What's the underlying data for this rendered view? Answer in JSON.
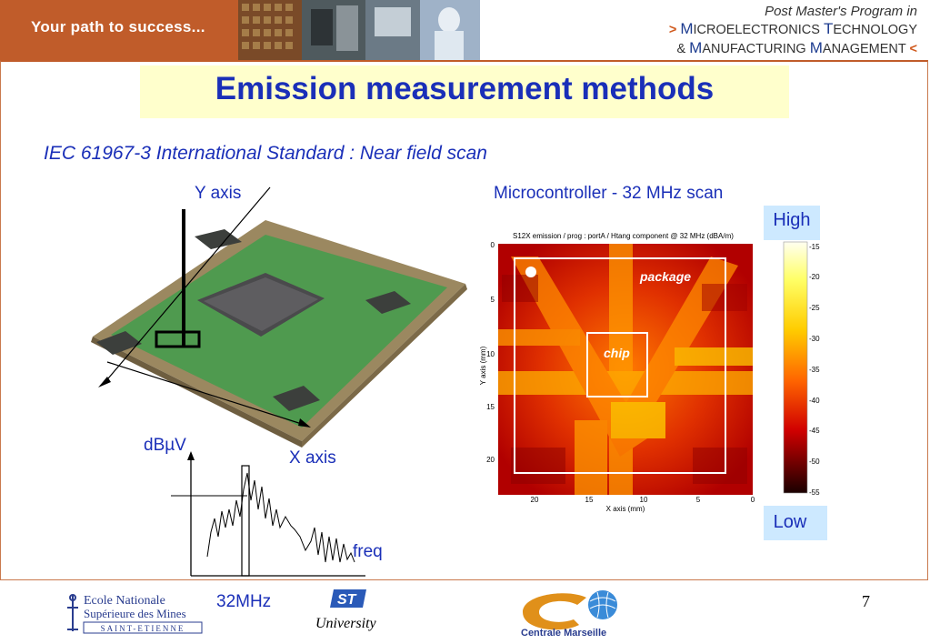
{
  "header": {
    "tagline": "Your path to success...",
    "program_line1": "Post Master's Program in",
    "program_line2_prefix": ">",
    "program_line2_a": "M",
    "program_line2_b": "ICROELECTRONICS ",
    "program_line2_c": "T",
    "program_line2_d": "ECHNOLOGY",
    "program_line3_prefix": "&",
    "program_line3_a": "M",
    "program_line3_b": "ANUFACTURING ",
    "program_line3_c": "M",
    "program_line3_d": "ANAGEMENT",
    "program_line3_suffix": "<"
  },
  "slide": {
    "title": "Emission measurement methods",
    "subtitle": "IEC 61967-3 International Standard : Near field scan",
    "y_axis_label": "Y axis",
    "x_axis_label": "X axis",
    "spectrum_unit": "dBµV",
    "spectrum_freq": "freq",
    "spectrum_marker": "32MHz",
    "scan_title": "Microcontroller - 32 MHz scan",
    "heatmap_caption": "S12X emission / prog : portA / Htang component @ 32 MHz (dBA/m)",
    "heatmap_xlabel": "X axis (mm)",
    "heatmap_ylabel": "Y axis (mm)",
    "heatmap_xticks": [
      "20",
      "15",
      "10",
      "5",
      "0"
    ],
    "heatmap_yticks": [
      "0",
      "5",
      "10",
      "15",
      "20"
    ],
    "package_label": "package",
    "chip_label": "chip",
    "high_label": "High",
    "low_label": "Low",
    "colorbar_ticks": [
      "-15",
      "-20",
      "-25",
      "-30",
      "-35",
      "-40",
      "-45",
      "-50",
      "-55"
    ],
    "page_number": "7"
  },
  "logos": {
    "emse_line1": "Ecole Nationale",
    "emse_line2": "Supérieure des Mines",
    "emse_line3": "SAINT-ETIENNE",
    "st_line": "University",
    "cm_line": "Centrale Marseille"
  },
  "colors": {
    "title": "#1a2fb8",
    "header": "#c05c2a",
    "title_bg": "#ffffcc",
    "label_bg": "#cde9ff"
  }
}
